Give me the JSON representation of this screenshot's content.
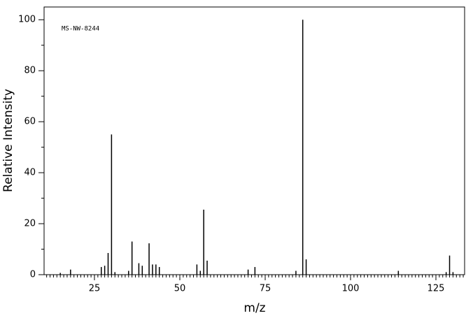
{
  "chart_data": {
    "type": "bar",
    "annotation": "MS-NW-8244",
    "x_label": "m/z",
    "y_label": "Relative Intensity",
    "x": [
      15,
      18,
      27,
      28,
      29,
      30,
      31,
      35,
      36,
      38,
      39,
      41,
      42,
      43,
      44,
      55,
      56,
      57,
      58,
      70,
      72,
      84,
      86,
      87,
      114,
      128,
      129,
      130
    ],
    "values": [
      0.7,
      2,
      3,
      3.5,
      8.5,
      55,
      1,
      1.5,
      13,
      4.5,
      3.5,
      12.3,
      4,
      4,
      3,
      4,
      1.5,
      25.5,
      5.5,
      2,
      3,
      1.5,
      100,
      6,
      1.5,
      1,
      7.5,
      1
    ],
    "color": "#000000",
    "xlim": [
      10.25,
      133.4
    ],
    "xticks": [
      25,
      50,
      75,
      100,
      125
    ],
    "ylim": [
      0,
      105
    ],
    "yticks": [
      0,
      20,
      40,
      60,
      80,
      100
    ]
  }
}
